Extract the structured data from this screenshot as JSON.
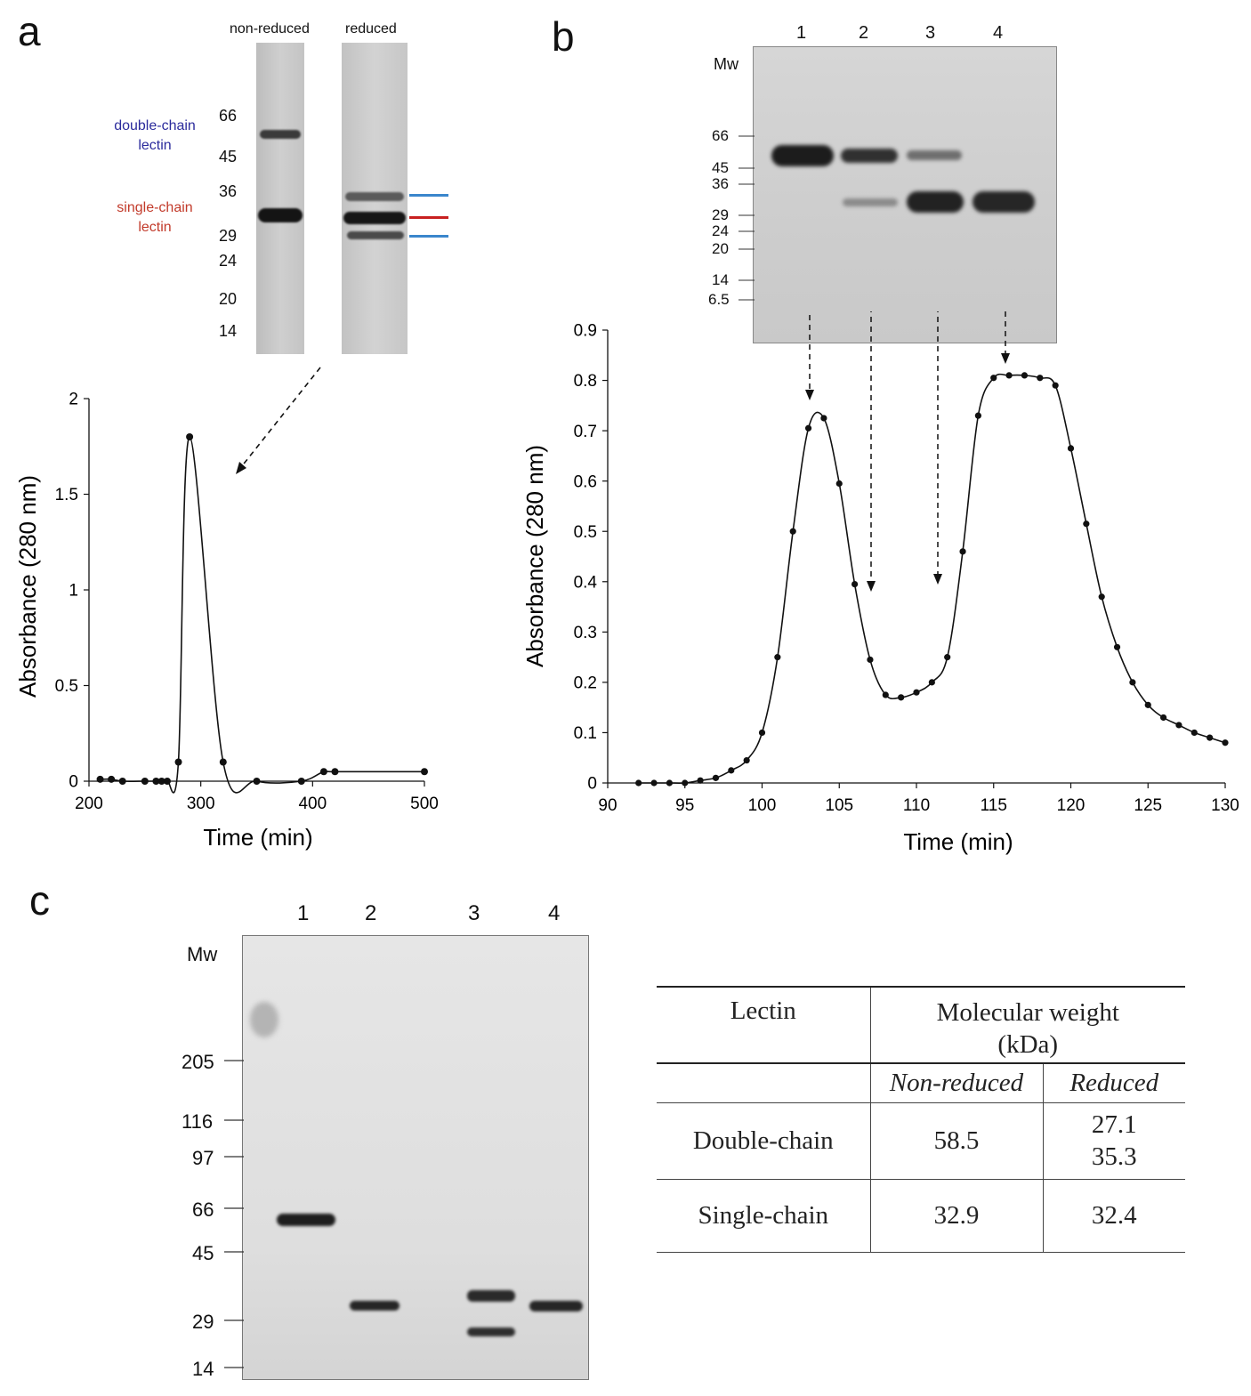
{
  "panels": {
    "a": "a",
    "b": "b",
    "c": "c"
  },
  "gel_a": {
    "lane_labels": [
      "non-reduced",
      "reduced"
    ],
    "mw_markers": [
      "66",
      "45",
      "36",
      "29",
      "24",
      "20",
      "14"
    ],
    "annotation_double": "double-chain\nlectin",
    "annotation_single": "single-chain\nlectin",
    "marker_colors": {
      "double": "#2e6fd0",
      "single": "#c82020"
    }
  },
  "gel_b": {
    "lane_numbers": [
      "1",
      "2",
      "3",
      "4"
    ],
    "mw_title": "Mw",
    "mw_markers": [
      "66",
      "45",
      "36",
      "29",
      "24",
      "20",
      "14",
      "6.5"
    ]
  },
  "gel_c": {
    "lane_numbers": [
      "1",
      "2",
      "3",
      "4"
    ],
    "mw_title": "Mw",
    "mw_markers": [
      "205",
      "116",
      "97",
      "66",
      "45",
      "29",
      "14"
    ]
  },
  "chart_data": [
    {
      "type": "line",
      "panel": "a",
      "xlabel": "Time (min)",
      "ylabel": "Absorbance (280 nm)",
      "xlim": [
        200,
        500
      ],
      "ylim": [
        0,
        2
      ],
      "xticks": [
        200,
        300,
        400,
        500
      ],
      "yticks": [
        0,
        0.5,
        1,
        1.5,
        2
      ],
      "ytick_labels": [
        "0",
        "0.5",
        "1",
        "1.5",
        "2"
      ],
      "markers": "circle",
      "x": [
        210,
        220,
        230,
        250,
        260,
        265,
        270,
        280,
        290,
        320,
        350,
        390,
        410,
        420,
        500
      ],
      "y": [
        0.01,
        0.01,
        0,
        0,
        0,
        0,
        0,
        0.1,
        1.8,
        0.1,
        0,
        0,
        0.05,
        0.05,
        0.05
      ]
    },
    {
      "type": "line",
      "panel": "b",
      "xlabel": "Time (min)",
      "ylabel": "Absorbance (280 nm)",
      "xlim": [
        90,
        130
      ],
      "ylim": [
        0,
        0.9
      ],
      "xticks": [
        90,
        95,
        100,
        105,
        110,
        115,
        120,
        125,
        130
      ],
      "yticks": [
        0,
        0.1,
        0.2,
        0.3,
        0.4,
        0.5,
        0.6,
        0.7,
        0.8,
        0.9
      ],
      "ytick_labels": [
        "0",
        "0.1",
        "0.2",
        "0.3",
        "0.4",
        "0.5",
        "0.6",
        "0.7",
        "0.8",
        "0.9"
      ],
      "markers": "circle",
      "x": [
        92,
        93,
        94,
        95,
        96,
        97,
        98,
        99,
        100,
        101,
        102,
        103,
        104,
        105,
        106,
        107,
        108,
        109,
        110,
        111,
        112,
        113,
        114,
        115,
        116,
        117,
        118,
        119,
        120,
        121,
        122,
        123,
        124,
        125,
        126,
        127,
        128,
        129,
        130
      ],
      "y": [
        0,
        0,
        0,
        0,
        0.005,
        0.01,
        0.025,
        0.045,
        0.1,
        0.25,
        0.5,
        0.705,
        0.725,
        0.595,
        0.395,
        0.245,
        0.175,
        0.17,
        0.18,
        0.2,
        0.25,
        0.46,
        0.73,
        0.805,
        0.81,
        0.81,
        0.805,
        0.79,
        0.665,
        0.515,
        0.37,
        0.27,
        0.2,
        0.155,
        0.13,
        0.115,
        0.1,
        0.09,
        0.08
      ]
    }
  ],
  "table": {
    "col1_header": "Lectin",
    "col2_header": "Molecular weight\n(kDa)",
    "sub_nonreduced": "Non-reduced",
    "sub_reduced": "Reduced",
    "rows": [
      {
        "lectin": "Double-chain",
        "nonreduced": "58.5",
        "reduced": "27.1\n35.3"
      },
      {
        "lectin": "Single-chain",
        "nonreduced": "32.9",
        "reduced": "32.4"
      }
    ]
  }
}
